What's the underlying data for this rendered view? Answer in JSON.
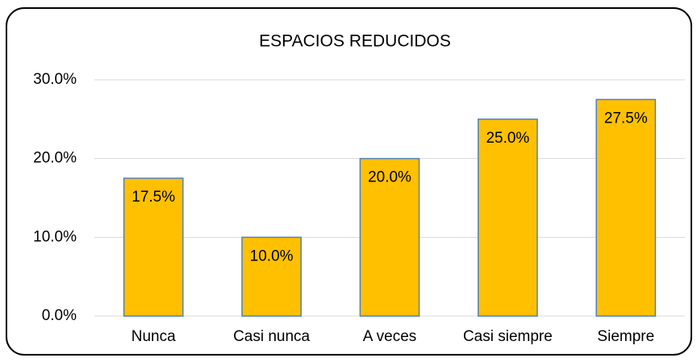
{
  "chart_data": {
    "type": "bar",
    "title": "ESPACIOS REDUCIDOS",
    "categories": [
      "Nunca",
      "Casi nunca",
      "A veces",
      "Casi siempre",
      "Siempre"
    ],
    "values": [
      17.5,
      10,
      20,
      25,
      27.5
    ],
    "value_labels": [
      "17.5%",
      "10.0%",
      "20.0%",
      "25.0%",
      "27.5%"
    ],
    "color": "#ffc000",
    "ylim": [
      0,
      30
    ],
    "yticks": [
      {
        "value": 0,
        "label": "0.0%"
      },
      {
        "value": 10,
        "label": "10.0%"
      },
      {
        "value": 20,
        "label": "20.0%"
      },
      {
        "value": 30,
        "label": "30.0%"
      }
    ],
    "grid": true
  }
}
